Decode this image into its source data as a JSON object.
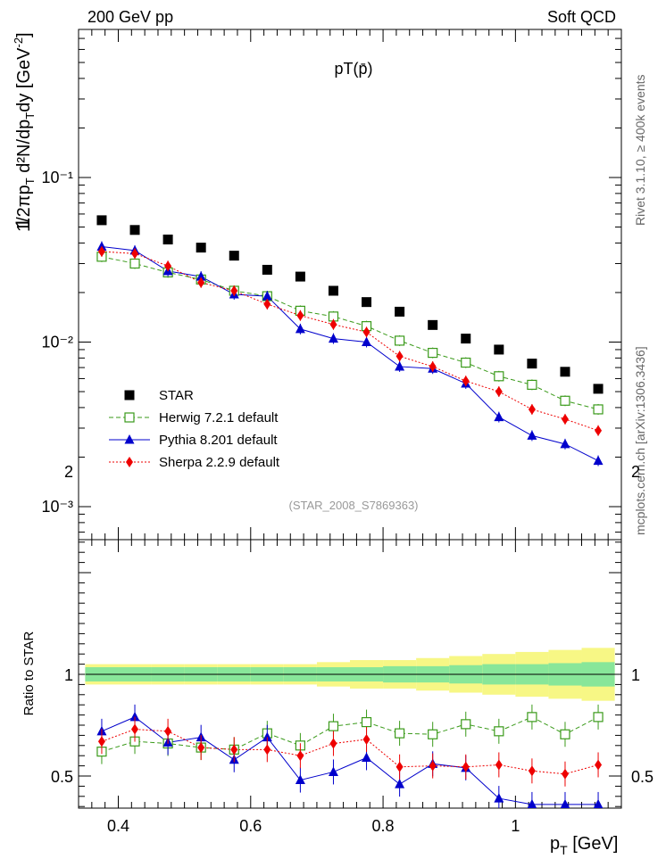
{
  "header": {
    "left": "200 GeV pp",
    "right": "Soft QCD"
  },
  "side_text": {
    "top": "Rivet 3.1.10, ≥ 400k events",
    "bottom": "mcplots.cern.ch [arXiv:1306.3436]"
  },
  "reference": "(STAR_2008_S7869363)",
  "chart_data": [
    {
      "type": "scatter",
      "title": "pT(p̄)",
      "ylabel": "1/(2π pT) d²N/(dpT dy) [GeV⁻²]",
      "xlabel": "pT [GeV]",
      "yscale": "log",
      "xlim": [
        0.34,
        1.16
      ],
      "ylim": [
        0.0007,
        1.0
      ],
      "y_tick_labels": [
        "10⁻³",
        "10⁻²",
        "10⁻¹"
      ],
      "legend_position": "lower-left",
      "x": [
        0.375,
        0.425,
        0.475,
        0.525,
        0.575,
        0.625,
        0.675,
        0.725,
        0.775,
        0.825,
        0.875,
        0.925,
        0.975,
        1.025,
        1.075,
        1.125
      ],
      "series": [
        {
          "name": "STAR",
          "color": "#000000",
          "marker": "filled-square",
          "values": [
            0.055,
            0.048,
            0.042,
            0.0375,
            0.0335,
            0.0275,
            0.025,
            0.0205,
            0.0175,
            0.0153,
            0.0127,
            0.0105,
            0.009,
            0.0074,
            0.0066,
            0.0052
          ]
        },
        {
          "name": "Herwig 7.2.1 default",
          "color": "#3a9a1a",
          "marker": "open-square",
          "line": "dashed",
          "values": [
            0.033,
            0.03,
            0.0265,
            0.024,
            0.0205,
            0.019,
            0.0155,
            0.0143,
            0.0125,
            0.0102,
            0.0086,
            0.0075,
            0.0062,
            0.0055,
            0.0044,
            0.0039
          ]
        },
        {
          "name": "Pythia 8.201 default",
          "color": "#0000cc",
          "marker": "filled-triangle",
          "line": "solid",
          "values": [
            0.038,
            0.036,
            0.027,
            0.025,
            0.0195,
            0.019,
            0.012,
            0.0105,
            0.01,
            0.0071,
            0.0069,
            0.0056,
            0.0035,
            0.0027,
            0.0024,
            0.0019
          ]
        },
        {
          "name": "Sherpa 2.2.9 default",
          "color": "#ee0000",
          "marker": "filled-diamond",
          "line": "dotted",
          "values": [
            0.0355,
            0.0345,
            0.029,
            0.023,
            0.0205,
            0.017,
            0.0145,
            0.0128,
            0.0115,
            0.0082,
            0.0071,
            0.0058,
            0.005,
            0.0039,
            0.0034,
            0.0029
          ]
        }
      ]
    },
    {
      "type": "scatter",
      "ylabel": "Ratio to STAR",
      "xlabel": "pT [GeV]",
      "xlim": [
        0.34,
        1.16
      ],
      "ylim": [
        0.35,
        2.3
      ],
      "x_tick_labels": [
        "0.4",
        "0.6",
        "0.8",
        "1"
      ],
      "y_tick_labels": [
        "0.5",
        "1",
        "2"
      ],
      "band": {
        "inner_color": "#88e699",
        "outer_color": "#f7f785",
        "inner_half_width": [
          0.035,
          0.035,
          0.035,
          0.035,
          0.035,
          0.035,
          0.035,
          0.035,
          0.035,
          0.04,
          0.04,
          0.045,
          0.05,
          0.05,
          0.055,
          0.06
        ],
        "outer_half_width": [
          0.05,
          0.05,
          0.05,
          0.05,
          0.05,
          0.05,
          0.05,
          0.06,
          0.07,
          0.07,
          0.08,
          0.09,
          0.1,
          0.11,
          0.12,
          0.13
        ]
      },
      "x": [
        0.375,
        0.425,
        0.475,
        0.525,
        0.575,
        0.625,
        0.675,
        0.725,
        0.775,
        0.825,
        0.875,
        0.925,
        0.975,
        1.025,
        1.075,
        1.125
      ],
      "series": [
        {
          "name": "Herwig 7.2.1 default",
          "color": "#3a9a1a",
          "marker": "open-square",
          "line": "dashed",
          "values": [
            0.62,
            0.67,
            0.66,
            0.64,
            0.63,
            0.71,
            0.65,
            0.745,
            0.765,
            0.71,
            0.705,
            0.755,
            0.72,
            0.79,
            0.705,
            0.79
          ]
        },
        {
          "name": "Pythia 8.201 default",
          "color": "#0000cc",
          "marker": "filled-triangle",
          "line": "solid",
          "values": [
            0.72,
            0.79,
            0.665,
            0.69,
            0.58,
            0.69,
            0.48,
            0.52,
            0.59,
            0.46,
            0.56,
            0.54,
            0.39,
            0.36,
            0.36,
            0.36
          ]
        },
        {
          "name": "Sherpa 2.2.9 default",
          "color": "#ee0000",
          "marker": "filled-diamond",
          "line": "dotted",
          "values": [
            0.67,
            0.73,
            0.72,
            0.64,
            0.63,
            0.63,
            0.6,
            0.66,
            0.68,
            0.545,
            0.55,
            0.545,
            0.555,
            0.525,
            0.51,
            0.555
          ]
        }
      ]
    }
  ]
}
